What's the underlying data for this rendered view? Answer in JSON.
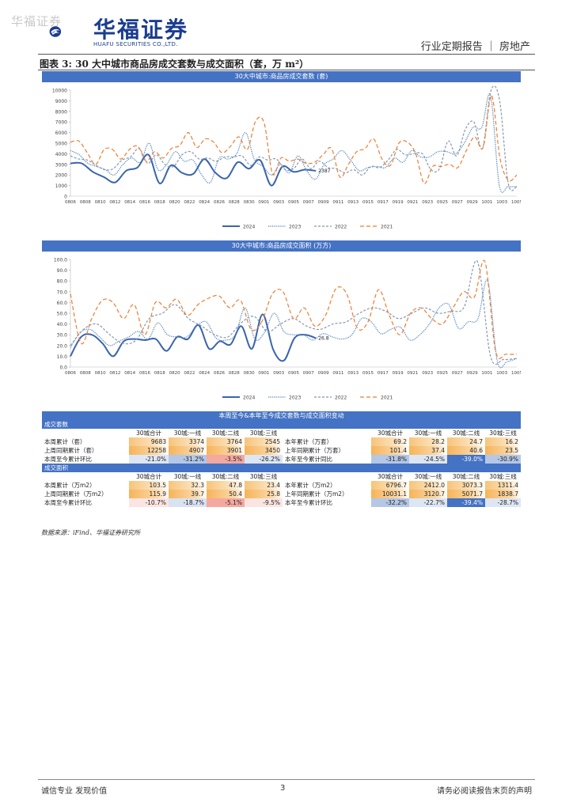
{
  "header": {
    "watermark": "华福证券",
    "logo_name": "华福证券",
    "logo_en": "HUAFU SECURITIES CO.,LTD.",
    "report_type": "行业定期报告 ｜ 房地产",
    "brand_color": "#1b3d8f"
  },
  "figure": {
    "title": "图表 3:  30 大中城市商品房成交套数与成交面积（套，万 m²）"
  },
  "chart_data": [
    {
      "type": "line",
      "title": "30大中城市:商品房成交套数  (套)",
      "x_ticks": [
        "0806",
        "0808",
        "0810",
        "0812",
        "0814",
        "0816",
        "0818",
        "0820",
        "0822",
        "0824",
        "0826",
        "0828",
        "0830",
        "0901",
        "0903",
        "0905",
        "0907",
        "0909",
        "0911",
        "0913",
        "0915",
        "0917",
        "0919",
        "0921",
        "0923",
        "0925",
        "0927",
        "0929",
        "1001",
        "1003",
        "1005"
      ],
      "ylim": [
        0,
        10000
      ],
      "y_ticks": [
        0,
        1000,
        2000,
        3000,
        4000,
        5000,
        6000,
        7000,
        8000,
        9000,
        10000
      ],
      "grid": false,
      "legend_position": "bottom",
      "annotation": "2387",
      "series": [
        {
          "name": "2024",
          "color": "#3b64ad",
          "style": "solid",
          "values": [
            3100,
            3100,
            2300,
            1800,
            1300,
            2400,
            2700,
            3900,
            1200,
            2900,
            2200,
            2100,
            3500,
            2200,
            1700,
            3200,
            2600,
            3400,
            1000,
            2800,
            2300,
            2500,
            2387
          ]
        },
        {
          "name": "2023",
          "color": "#4f81bd",
          "style": "dotted",
          "values": [
            4300,
            3900,
            3100,
            2800,
            2500,
            2000,
            3000,
            3600,
            3200,
            5000,
            2500,
            3000,
            4200,
            3300,
            3400,
            2000,
            1300,
            3600,
            3500,
            4000,
            6000,
            3500,
            2800,
            2000,
            3000,
            2200,
            3800,
            2400,
            1600,
            3000,
            3500,
            4300,
            3400,
            2400,
            2700,
            2800,
            2700,
            3600,
            3200,
            4300,
            3700,
            3700,
            4200,
            4200,
            4000,
            5000,
            6500,
            6500,
            9500,
            1000,
            900,
            900
          ]
        },
        {
          "name": "2022",
          "color": "#8497b0",
          "style": "dashed",
          "values": [
            3800,
            3500,
            3400,
            2900,
            2500,
            2600,
            3400,
            3700,
            4500,
            3100,
            3900,
            3000,
            2800,
            3900,
            4200,
            3500,
            3600,
            3300,
            3700,
            3700,
            3800,
            2900,
            3700,
            3400,
            3500,
            2500,
            2600,
            3500,
            2600,
            3300,
            2700,
            2600,
            2200,
            2500,
            2000,
            2800,
            2700,
            3400,
            4400,
            3900,
            4000,
            4000,
            2500,
            2600,
            5200,
            3800,
            6300,
            7000,
            4500,
            10000,
            9000,
            1200,
            900
          ]
        },
        {
          "name": "2021",
          "color": "#ed7d31",
          "style": "dashed",
          "values": [
            5100,
            5200,
            4100,
            3000,
            4400,
            4400,
            3500,
            4400,
            4700,
            3300,
            4200,
            3600,
            4500,
            4800,
            6000,
            4600,
            5400,
            5100,
            4100,
            4700,
            5600,
            4400,
            7100,
            6900,
            2100,
            3600,
            3300,
            3500,
            3100,
            3200,
            3900,
            4500,
            1800,
            3000,
            4200,
            4500,
            5400,
            3500,
            2900,
            5000,
            5100,
            4000,
            1200,
            2800,
            2800,
            3000,
            2700,
            4300,
            5600,
            4600,
            9500,
            3600,
            1500,
            2000
          ]
        }
      ]
    },
    {
      "type": "line",
      "title": "30大中城市:商品房成交面积  (万方)",
      "x_ticks": [
        "0806",
        "0808",
        "0810",
        "0812",
        "0814",
        "0816",
        "0818",
        "0820",
        "0822",
        "0824",
        "0826",
        "0828",
        "0830",
        "0901",
        "0903",
        "0905",
        "0907",
        "0909",
        "0911",
        "0913",
        "0915",
        "0917",
        "0919",
        "0921",
        "0923",
        "0925",
        "0927",
        "0929",
        "1001",
        "1003",
        "1005"
      ],
      "ylim": [
        0,
        100
      ],
      "y_ticks": [
        0.0,
        10.0,
        20.0,
        30.0,
        40.0,
        50.0,
        60.0,
        70.0,
        80.0,
        90.0,
        100.0
      ],
      "grid": false,
      "legend_position": "bottom",
      "annotation": "26.8",
      "series": [
        {
          "name": "2024",
          "color": "#3b64ad",
          "style": "solid",
          "values": [
            10,
            28,
            30,
            22,
            10,
            24,
            26,
            25,
            26,
            15,
            28,
            26,
            39,
            17,
            24,
            21,
            38,
            17,
            49,
            16,
            6,
            27,
            30,
            26.8
          ]
        },
        {
          "name": "2023",
          "color": "#4f81bd",
          "style": "dotted",
          "values": [
            18,
            32,
            35,
            28,
            20,
            24,
            28,
            33,
            26,
            41,
            30,
            28,
            28,
            38,
            42,
            27,
            25,
            30,
            55,
            26,
            32,
            50,
            33,
            30,
            30,
            25,
            31,
            28,
            26,
            30,
            45,
            42,
            31,
            35,
            37,
            25,
            30,
            40,
            55,
            58,
            36,
            42,
            45,
            80,
            5,
            5,
            8
          ]
        },
        {
          "name": "2022",
          "color": "#8497b0",
          "style": "dashed",
          "values": [
            20,
            35,
            40,
            30,
            22,
            25,
            45,
            50,
            58,
            45,
            38,
            30,
            28,
            41,
            47,
            33,
            40,
            45,
            38,
            35,
            40,
            42,
            50,
            55,
            52,
            45,
            50,
            55,
            50,
            52,
            56,
            98,
            10,
            7,
            8
          ]
        },
        {
          "name": "2021",
          "color": "#ed7d31",
          "style": "dashed",
          "values": [
            68,
            22,
            45,
            62,
            60,
            45,
            58,
            30,
            60,
            55,
            63,
            48,
            58,
            64,
            66,
            55,
            62,
            35,
            42,
            68,
            70,
            45,
            55,
            38,
            48,
            73,
            68,
            36,
            42,
            72,
            48,
            30,
            50,
            55,
            45,
            40,
            55,
            70,
            65,
            98,
            15,
            12,
            12
          ]
        }
      ]
    }
  ],
  "table": {
    "title": "本周至今&本年至今成交套数与成交面积变动",
    "sections": [
      {
        "label": "成交套数",
        "headers": [
          "",
          "30城合计",
          "30城:一线",
          "30城:二线",
          "30城:三线",
          "",
          "30城合计",
          "30城:一线",
          "30城:二线",
          "30城:三线"
        ],
        "rows": [
          [
            "本周累计（套）",
            "9683",
            "3374",
            "3764",
            "2545",
            "本年累计（万套）",
            "69.2",
            "28.2",
            "24.7",
            "16.2"
          ],
          [
            "上周同期累计（套）",
            "12258",
            "4907",
            "3901",
            "3450",
            "上年同期累计（万套）",
            "101.4",
            "37.4",
            "40.6",
            "23.5"
          ],
          [
            "本周至今累计环比",
            "-21.0%",
            "-31.2%",
            "-3.5%",
            "-26.2%",
            "本年至今累计同比",
            "-31.8%",
            "-24.5%",
            "-39.0%",
            "-30.9%"
          ]
        ]
      },
      {
        "label": "成交面积",
        "headers": [
          "",
          "30城合计",
          "30城:一线",
          "30城:二线",
          "30城:三线",
          "",
          "30城合计",
          "30城:一线",
          "30城:二线",
          "30城:三线"
        ],
        "rows": [
          [
            "本周累计（万m2）",
            "103.5",
            "32.3",
            "47.8",
            "23.4",
            "本年累计（万m2）",
            "6796.7",
            "2412.0",
            "3073.3",
            "1311.4"
          ],
          [
            "上周同期累计（万m2）",
            "115.9",
            "39.7",
            "50.4",
            "25.8",
            "上年同期累计（万m2）",
            "10031.1",
            "3120.7",
            "5071.7",
            "1838.7"
          ],
          [
            "本周至今累计环比",
            "-10.7%",
            "-18.7%",
            "-5.1%",
            "-9.5%",
            "本年至今累计环比",
            "-32.2%",
            "-22.7%",
            "-39.4%",
            "-28.7%"
          ]
        ]
      }
    ]
  },
  "source": "数据来源：iFind、华福证券研究所",
  "footer": {
    "left": "诚信专业  发现价值",
    "page": "3",
    "right": "请务必阅读报告末页的声明"
  }
}
